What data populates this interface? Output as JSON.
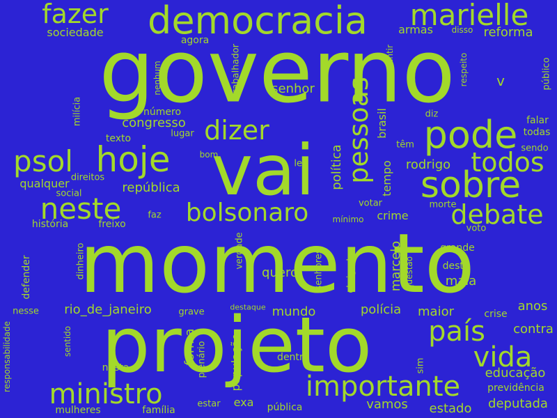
{
  "colors": {
    "background": "#2c23d4",
    "word": "#a3d92a"
  },
  "words": [
    "governo",
    "momento",
    "projeto",
    "vai",
    "democracia",
    "marielle",
    "fazer",
    "sociedade",
    "pode",
    "hoje",
    "psol",
    "dizer",
    "sobre",
    "pessoas",
    "neste",
    "bolsonaro",
    "debate",
    "todos",
    "país",
    "vida",
    "importante",
    "ministro",
    "armas",
    "disso",
    "reforma",
    "agora",
    "trabalhador",
    "garantir",
    "respeito",
    "público",
    "senhor",
    "v",
    "nenhum",
    "milícia",
    "texto",
    "número",
    "congresso",
    "lugar",
    "bom",
    "diz",
    "falar",
    "todas",
    "sendo",
    "política",
    "tempo",
    "brasil",
    "têm",
    "rodrigo",
    "lei",
    "qualquer",
    "direitos",
    "social",
    "república",
    "votar",
    "morte",
    "faz",
    "mínimo",
    "crime",
    "voto",
    "história",
    "freixo",
    "dinheiro",
    "defender",
    "verdade",
    "senhores",
    "quero",
    "marcelo",
    "obrigado",
    "questão",
    "grande",
    "desta",
    "maia",
    "nesse",
    "rio_de_janeiro",
    "destaque",
    "grave",
    "mundo",
    "polícia",
    "maior",
    "anos",
    "responsabilidade",
    "sentido",
    "plenário",
    "forma",
    "população",
    "crise",
    "contra",
    "dentro",
    "sim",
    "educação",
    "nesta",
    "previdência",
    "estar",
    "exa",
    "vamos",
    "mulheres",
    "família",
    "pública",
    "estado",
    "deputada"
  ]
}
